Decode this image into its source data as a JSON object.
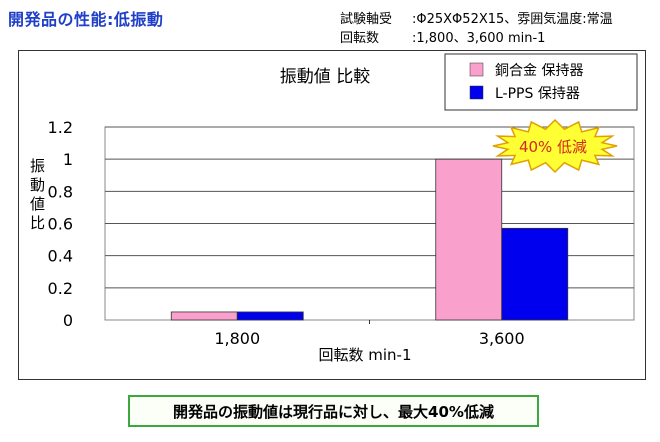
{
  "page_title": "開発品の性能:低振動",
  "test_conditions": {
    "rows": [
      {
        "label": "試験軸受",
        "value": ":Φ25XΦ52X15、雰囲気温度:常温"
      },
      {
        "label": "回転数",
        "value": ":1,800、3,600 min-1"
      }
    ]
  },
  "chart_data": {
    "type": "bar",
    "title": "振動値 比較",
    "xlabel": "回転数 min-1",
    "ylabel": "振動値比",
    "categories": [
      "1,800",
      "3,600"
    ],
    "series": [
      {
        "name": "銅合金 保持器",
        "values": [
          0.05,
          1.0
        ],
        "color": "#f9a0cc"
      },
      {
        "name": "L-PPS 保持器",
        "values": [
          0.05,
          0.57
        ],
        "color": "#0000ee"
      }
    ],
    "ylim": [
      0,
      1.2
    ],
    "yticks": [
      "0",
      "0.2",
      "0.4",
      "0.6",
      "0.8",
      "1",
      "1.2"
    ],
    "grid": true,
    "legend_position": "top-right",
    "annotation": "40% 低減"
  },
  "footer_message": "開発品の振動値は現行品に対し、最大40%低減"
}
